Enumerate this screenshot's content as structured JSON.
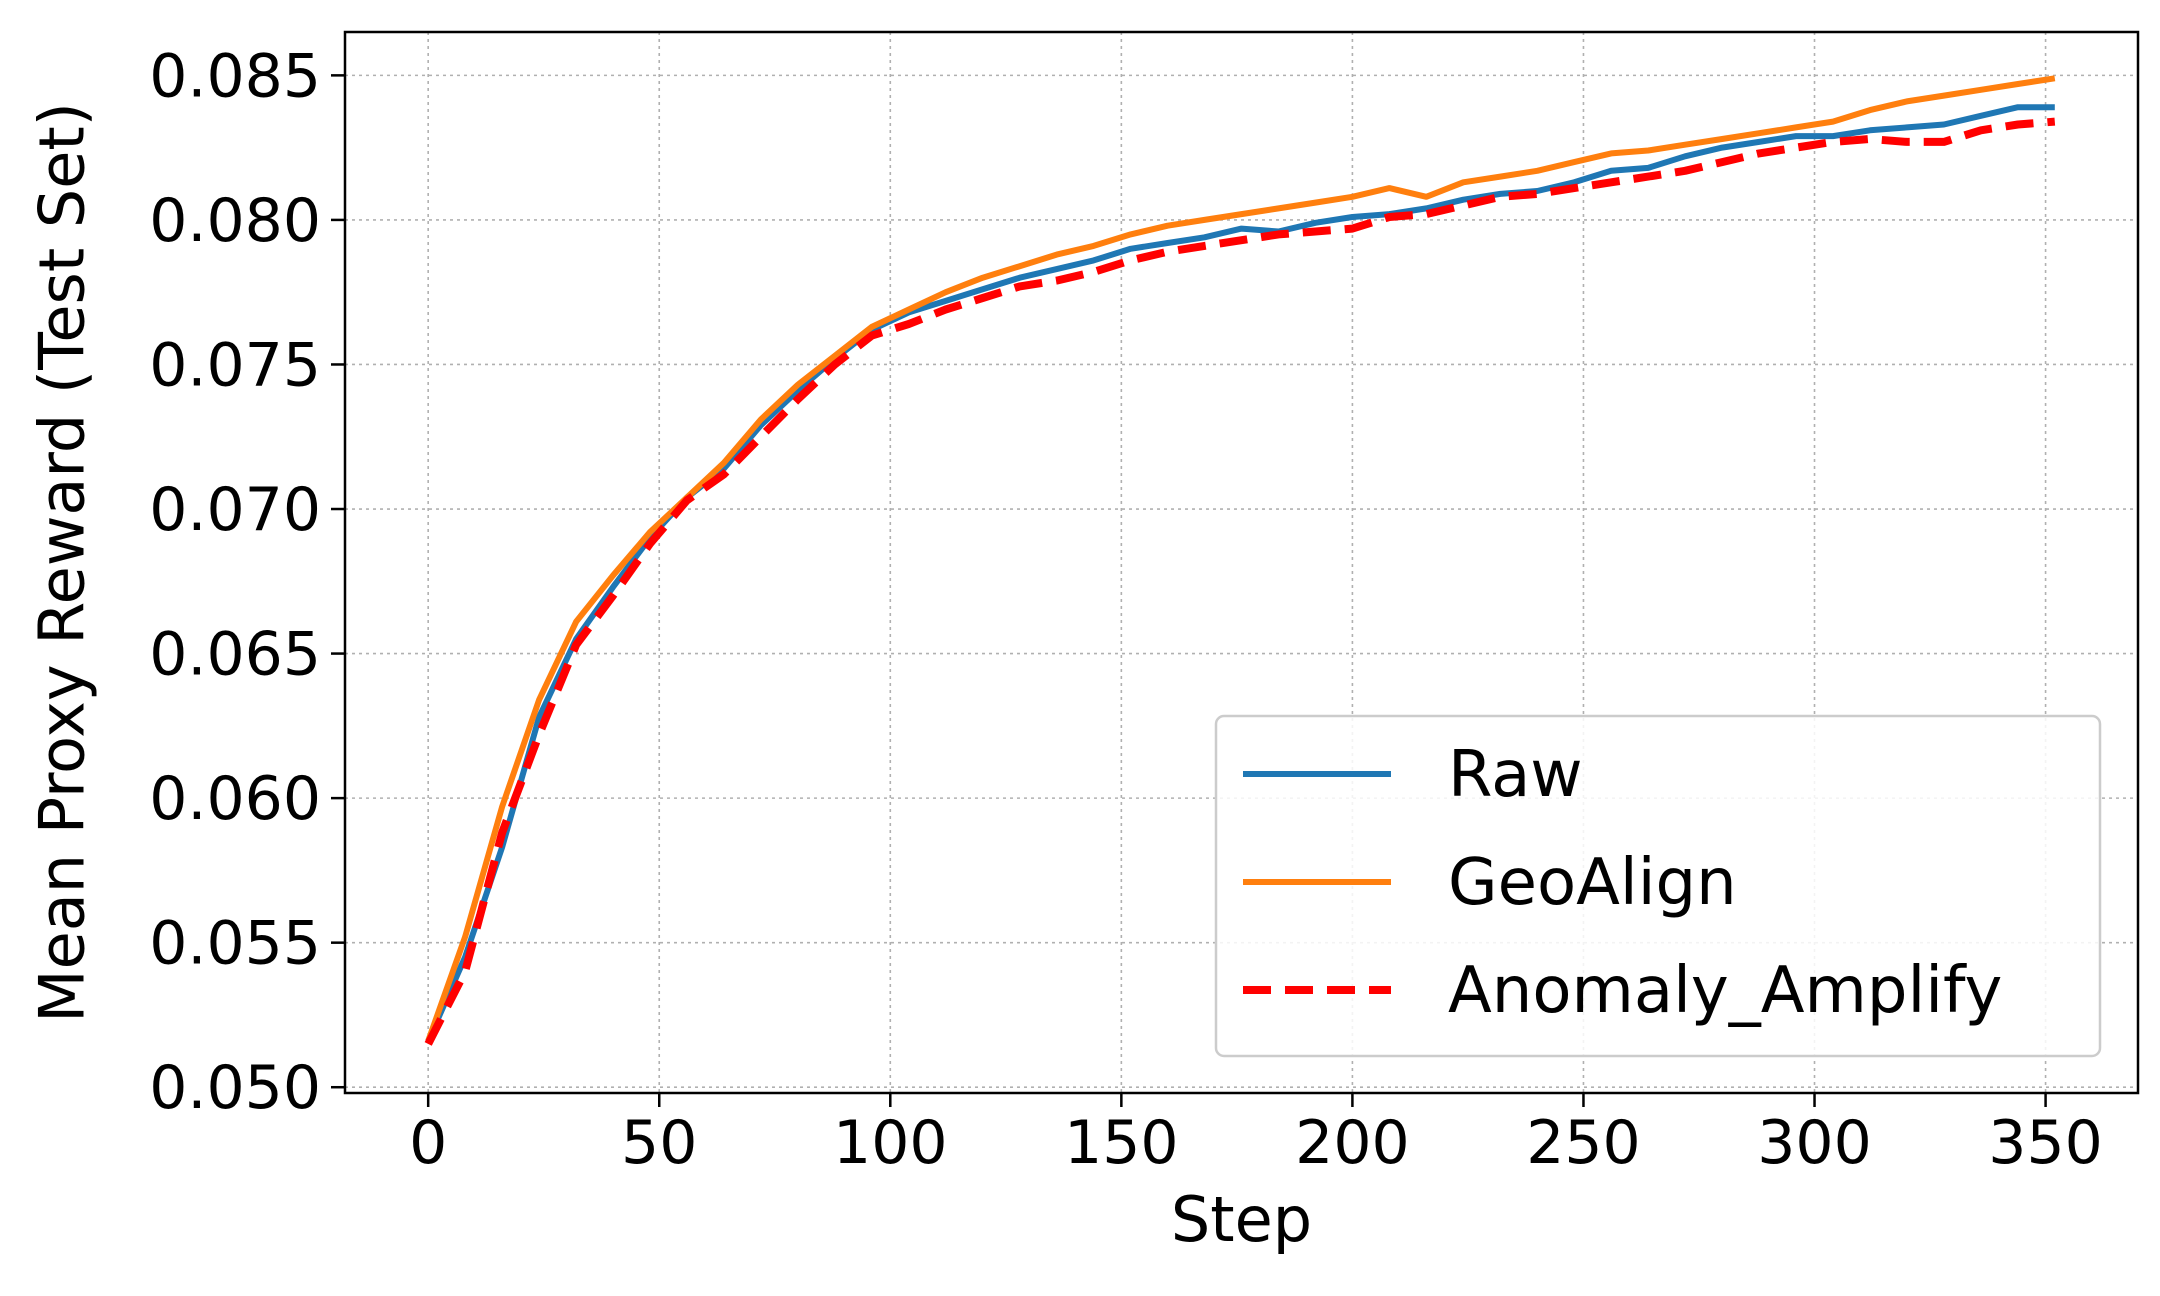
{
  "chart_data": {
    "type": "line",
    "title": "",
    "xlabel": "Step",
    "ylabel": "Mean Proxy Reward (Test Set)",
    "xlim": [
      -18,
      370
    ],
    "ylim": [
      0.0498,
      0.0865
    ],
    "xticks": [
      "0",
      "50",
      "100",
      "150",
      "200",
      "250",
      "300",
      "350"
    ],
    "yticks": [
      "0.050",
      "0.055",
      "0.060",
      "0.065",
      "0.070",
      "0.075",
      "0.080",
      "0.085"
    ],
    "grid": true,
    "legend_position": "lower-right",
    "x": [
      0,
      8,
      16,
      24,
      32,
      40,
      48,
      56,
      64,
      72,
      80,
      88,
      96,
      104,
      112,
      120,
      128,
      136,
      144,
      152,
      160,
      168,
      176,
      184,
      192,
      200,
      208,
      216,
      224,
      232,
      240,
      248,
      256,
      264,
      272,
      280,
      288,
      296,
      304,
      312,
      320,
      328,
      336,
      344,
      352
    ],
    "series": [
      {
        "name": "Raw",
        "color": "#1f77b4",
        "style": "solid",
        "values": [
          0.0516,
          0.0545,
          0.0583,
          0.0628,
          0.0655,
          0.0673,
          0.069,
          0.0704,
          0.0714,
          0.0729,
          0.0741,
          0.0752,
          0.0762,
          0.0768,
          0.0772,
          0.0776,
          0.078,
          0.0783,
          0.0786,
          0.079,
          0.0792,
          0.0794,
          0.0797,
          0.0796,
          0.0799,
          0.0801,
          0.0802,
          0.0804,
          0.0807,
          0.0809,
          0.081,
          0.0813,
          0.0817,
          0.0818,
          0.0822,
          0.0825,
          0.0827,
          0.0829,
          0.0829,
          0.0831,
          0.0832,
          0.0833,
          0.0836,
          0.0839,
          0.0839
        ]
      },
      {
        "name": "GeoAlign",
        "color": "#ff7f0e",
        "style": "solid",
        "values": [
          0.0516,
          0.0552,
          0.0597,
          0.0634,
          0.0661,
          0.0677,
          0.0692,
          0.0704,
          0.0716,
          0.0731,
          0.0743,
          0.0753,
          0.0763,
          0.0769,
          0.0775,
          0.078,
          0.0784,
          0.0788,
          0.0791,
          0.0795,
          0.0798,
          0.08,
          0.0802,
          0.0804,
          0.0806,
          0.0808,
          0.0811,
          0.0808,
          0.0813,
          0.0815,
          0.0817,
          0.082,
          0.0823,
          0.0824,
          0.0826,
          0.0828,
          0.083,
          0.0832,
          0.0834,
          0.0838,
          0.0841,
          0.0843,
          0.0845,
          0.0847,
          0.0849
        ]
      },
      {
        "name": "Anomaly_Amplify",
        "color": "#ff0000",
        "style": "dashed",
        "values": [
          0.0515,
          0.054,
          0.0588,
          0.0622,
          0.0653,
          0.067,
          0.0688,
          0.0703,
          0.0712,
          0.0725,
          0.0738,
          0.075,
          0.076,
          0.0764,
          0.0769,
          0.0773,
          0.0777,
          0.0779,
          0.0782,
          0.0786,
          0.0789,
          0.0791,
          0.0793,
          0.0795,
          0.0796,
          0.0797,
          0.0801,
          0.0802,
          0.0805,
          0.0808,
          0.0809,
          0.0811,
          0.0813,
          0.0815,
          0.0817,
          0.082,
          0.0823,
          0.0825,
          0.0827,
          0.0828,
          0.0827,
          0.0827,
          0.0831,
          0.0833,
          0.0834
        ]
      }
    ]
  }
}
